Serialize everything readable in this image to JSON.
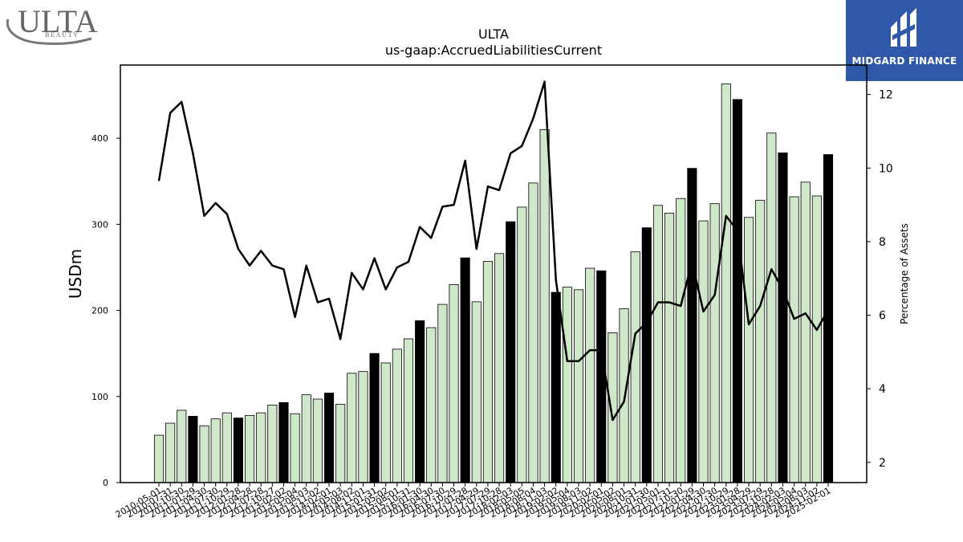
{
  "branding": {
    "left_logo_name": "ULTA",
    "left_logo_sub": "B E A U T Y",
    "right_logo_name": "MIDGARD FINANCE"
  },
  "chart_data": {
    "type": "bar",
    "title": "ULTA",
    "subtitle": "us-gaap:AccruedLiabilitiesCurrent",
    "ylabel": "USDm",
    "y2label": "Percentage of Assets",
    "ylim": [
      0,
      485
    ],
    "y2lim": [
      1.45,
      12.8
    ],
    "yticks": [
      0,
      100,
      200,
      300,
      400
    ],
    "y2ticks": [
      2,
      4,
      6,
      8,
      10,
      12
    ],
    "colors": {
      "bar_quarter": "#cfe8c9",
      "bar_annual": "#000000",
      "bar_edge": "#000000",
      "line": "#000000"
    },
    "categories": [
      "2010-05-01",
      "2010-07-31",
      "2010-10-30",
      "2011-01-29",
      "2011-04-30",
      "2011-07-30",
      "2011-10-29",
      "2012-01-28",
      "2012-04-28",
      "2012-07-28",
      "2012-10-27",
      "2013-02-02",
      "2013-05-04",
      "2013-08-03",
      "2013-11-02",
      "2014-02-01",
      "2014-05-03",
      "2014-08-02",
      "2014-11-01",
      "2015-01-31",
      "2015-05-02",
      "2015-08-01",
      "2015-10-31",
      "2016-01-30",
      "2016-04-30",
      "2016-07-30",
      "2016-10-29",
      "2017-01-28",
      "2017-04-29",
      "2017-07-29",
      "2017-10-28",
      "2018-02-03",
      "2018-05-05",
      "2018-08-04",
      "2018-11-03",
      "2019-02-02",
      "2019-05-04",
      "2019-08-03",
      "2019-11-02",
      "2020-02-01",
      "2020-05-02",
      "2020-08-01",
      "2020-10-31",
      "2021-01-30",
      "2021-05-01",
      "2021-07-31",
      "2021-10-30",
      "2022-01-29",
      "2022-04-30",
      "2022-07-30",
      "2022-10-29",
      "2023-01-28",
      "2023-04-29",
      "2023-07-29",
      "2023-10-28",
      "2024-02-03",
      "2024-05-04",
      "2024-08-03",
      "2024-11-02",
      "2025-02-01"
    ],
    "tick_labels": [
      "2010-05-01",
      "2010-07-31",
      "2010-10-30",
      "2011-01-29",
      "2011-04-30",
      "2011-07-30",
      "2011-10-29",
      "2012-01-28",
      "2012-04-28",
      "2012-07-28",
      "2012-10-27",
      "2013-02-02",
      "2013-05-04",
      "2013-08-03",
      "2013-11-02",
      "2014-02-01",
      "2014-05-03",
      "2014-08-02",
      "2014-11-01",
      "2015-01-31",
      "2015-05-02",
      "2015-08-01",
      "2015-10-31",
      "2016-01-30",
      "2016-04-30",
      "2016-07-30",
      "2016-10-29",
      "2017-01-28",
      "2017-04-29",
      "2017-07-29",
      "2017-10-28",
      "2018-02-03",
      "2018-05-05",
      "2018-08-04",
      "2018-11-03",
      "2019-02-02",
      "2019-05-04",
      "2019-08-03",
      "2019-11-02",
      "2020-02-01",
      "2020-05-02",
      "2020-08-01",
      "2020-10-31",
      "2021-01-30",
      "2021-05-01",
      "2021-07-31",
      "2021-10-30",
      "2022-01-29",
      "2022-04-30",
      "2022-07-30",
      "2022-10-29",
      "2023-01-28",
      "2023-04-29",
      "2023-07-29",
      "2023-10-28",
      "2024-02-03",
      "2024-05-04",
      "2024-08-03",
      "2024-11-02",
      "2025-02-01"
    ],
    "annual": [
      false,
      false,
      false,
      true,
      false,
      false,
      false,
      true,
      false,
      false,
      false,
      true,
      false,
      false,
      false,
      true,
      false,
      false,
      false,
      true,
      false,
      false,
      false,
      true,
      false,
      false,
      false,
      true,
      false,
      false,
      false,
      true,
      false,
      false,
      false,
      true,
      false,
      false,
      false,
      true,
      false,
      false,
      false,
      true,
      false,
      false,
      false,
      true,
      false,
      false,
      false,
      true,
      false,
      false,
      false,
      true,
      false,
      false,
      false,
      true
    ],
    "series": [
      {
        "name": "USDm",
        "axis": "left",
        "values": [
          55,
          69,
          84,
          77,
          66,
          74,
          81,
          75,
          78,
          81,
          90,
          93,
          80,
          102,
          97,
          104,
          91,
          127,
          129,
          150,
          139,
          155,
          167,
          188,
          180,
          207,
          230,
          261,
          210,
          257,
          266,
          303,
          320,
          348,
          410,
          221,
          227,
          224,
          249,
          246,
          174,
          202,
          268,
          296,
          322,
          313,
          330,
          365,
          304,
          324,
          463,
          445,
          308,
          328,
          406,
          383,
          332,
          349,
          333,
          381
        ]
      },
      {
        "name": "Percentage of Assets",
        "axis": "right",
        "values": [
          9.65,
          11.5,
          11.8,
          10.4,
          8.7,
          9.05,
          8.75,
          7.8,
          7.35,
          7.75,
          7.35,
          7.25,
          5.95,
          7.35,
          6.35,
          6.45,
          5.35,
          7.15,
          6.7,
          7.55,
          6.7,
          7.3,
          7.45,
          8.4,
          8.1,
          8.95,
          9.0,
          10.2,
          7.8,
          9.5,
          9.4,
          10.4,
          10.6,
          11.35,
          12.35,
          6.95,
          4.75,
          4.75,
          5.05,
          5.05,
          3.15,
          3.65,
          5.5,
          5.8,
          6.35,
          6.35,
          6.25,
          7.45,
          6.1,
          6.55,
          8.7,
          8.3,
          5.75,
          6.25,
          7.25,
          6.7,
          5.9,
          6.05,
          5.6,
          6.15
        ]
      }
    ]
  }
}
